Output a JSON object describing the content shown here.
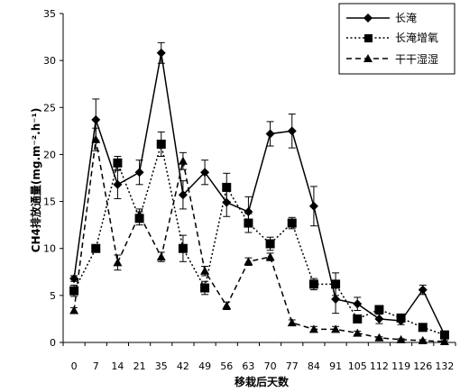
{
  "chart_data": {
    "type": "line",
    "title": "",
    "xlabel": "移栽后天数",
    "ylabel": "CH4排放通量(mg.m⁻².h⁻¹)",
    "ylim": [
      0,
      35
    ],
    "y_ticks": [
      0,
      5,
      10,
      15,
      20,
      25,
      30,
      35
    ],
    "categories": [
      "0",
      "7",
      "14",
      "21",
      "35",
      "42",
      "49",
      "56",
      "63",
      "70",
      "77",
      "84",
      "91",
      "105",
      "112",
      "119",
      "126",
      "132"
    ],
    "grid": false,
    "legend_position": "top-right",
    "series": [
      {
        "name": "长淹",
        "line_style": "solid",
        "marker": "diamond",
        "values": [
          6.8,
          23.7,
          16.8,
          18.1,
          30.8,
          15.7,
          18.1,
          14.9,
          13.9,
          22.2,
          22.5,
          14.5,
          4.6,
          4.1,
          2.5,
          2.3,
          5.6,
          0.8
        ],
        "errors": [
          0.3,
          2.2,
          1.5,
          1.3,
          1.1,
          1.5,
          1.3,
          1.5,
          1.6,
          1.3,
          1.8,
          2.1,
          1.5,
          0.7,
          0.5,
          0.4,
          0.5,
          0.2
        ]
      },
      {
        "name": "长淹增氧",
        "line_style": "dotted",
        "marker": "square",
        "values": [
          5.5,
          10.0,
          19.1,
          13.2,
          21.1,
          10.0,
          5.8,
          16.5,
          12.7,
          10.5,
          12.7,
          6.2,
          6.2,
          2.5,
          3.5,
          2.6,
          1.6,
          0.8
        ],
        "errors": [
          0.6,
          0.4,
          0.7,
          0.7,
          1.3,
          1.4,
          0.7,
          1.5,
          1.0,
          0.7,
          0.6,
          0.6,
          1.2,
          0.4,
          0.3,
          0.3,
          0.3,
          0.2
        ]
      },
      {
        "name": "干干湿湿",
        "line_style": "dashed",
        "marker": "triangle",
        "values": [
          3.4,
          21.6,
          8.5,
          13.6,
          9.1,
          19.3,
          7.6,
          3.9,
          8.6,
          9.1,
          2.1,
          1.4,
          1.4,
          1.0,
          0.5,
          0.3,
          0.2,
          0.1
        ],
        "errors": [
          0.3,
          1.2,
          0.8,
          0.6,
          0.5,
          0.9,
          0.5,
          0.4,
          0.4,
          0.4,
          0.3,
          0.3,
          0.3,
          0.2,
          0.1,
          0.1,
          0.1,
          0.1
        ]
      }
    ]
  }
}
